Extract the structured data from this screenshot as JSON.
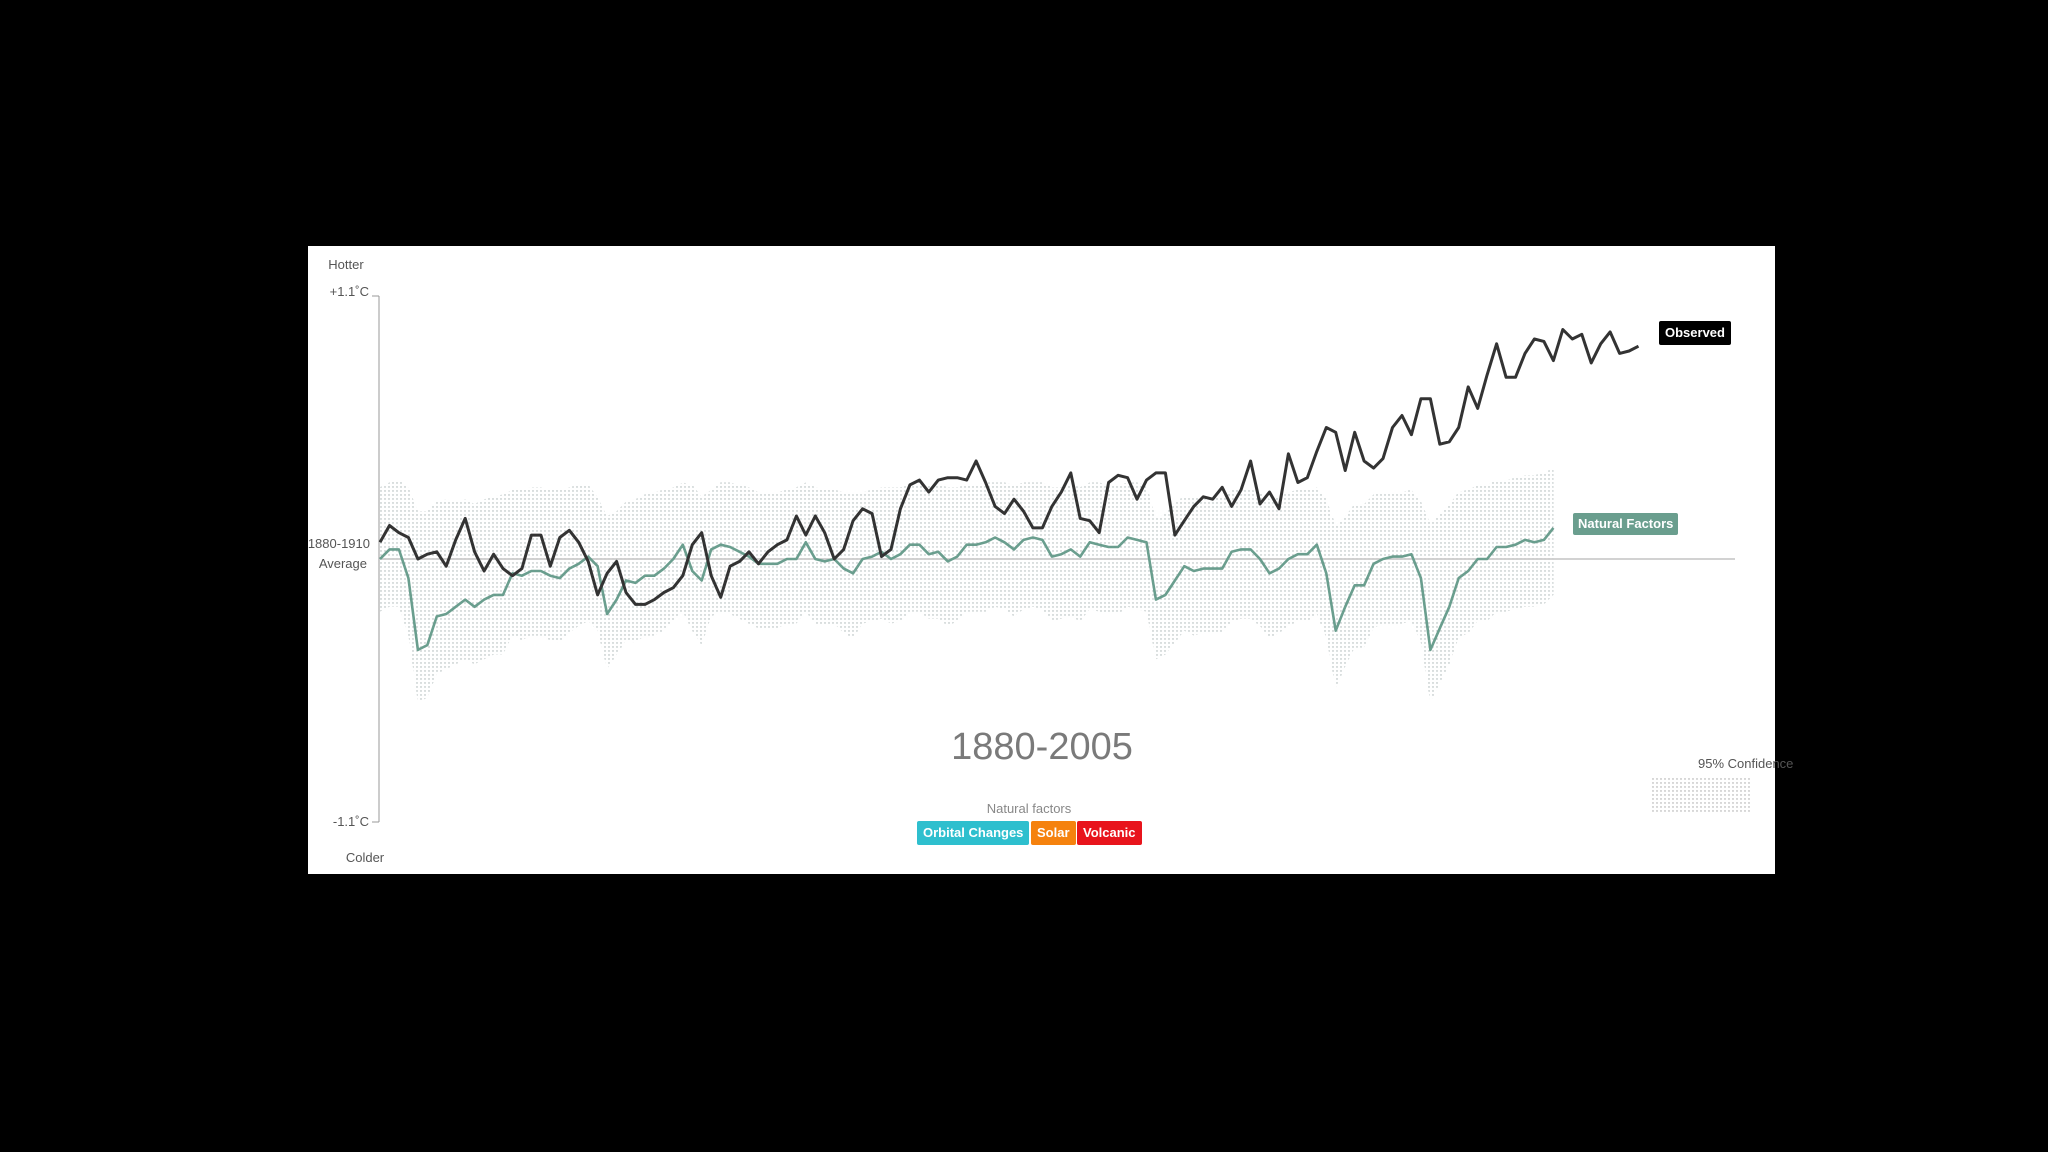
{
  "chart_data": {
    "type": "line",
    "title": "1880-2005",
    "y_top_label": "Hotter",
    "y_bottom_label": "Colder",
    "y_ticks": [
      "+1.1˚C",
      "-1.1˚C"
    ],
    "baseline_label_1": "1880-1910",
    "baseline_label_2": "Average",
    "ylim": [
      -1.1,
      1.1
    ],
    "xlim": [
      1880,
      2014
    ],
    "x_start": 1880,
    "series": [
      {
        "name": "Observed",
        "color": "#333333",
        "values": [
          0.07,
          0.14,
          0.11,
          0.09,
          0.0,
          0.02,
          0.03,
          -0.03,
          0.08,
          0.17,
          0.03,
          -0.05,
          0.02,
          -0.04,
          -0.07,
          -0.04,
          0.1,
          0.1,
          -0.03,
          0.09,
          0.12,
          0.07,
          -0.01,
          -0.15,
          -0.06,
          -0.01,
          -0.14,
          -0.19,
          -0.19,
          -0.17,
          -0.14,
          -0.12,
          -0.07,
          0.06,
          0.11,
          -0.07,
          -0.16,
          -0.03,
          -0.01,
          0.03,
          -0.02,
          0.03,
          0.06,
          0.08,
          0.18,
          0.1,
          0.18,
          0.11,
          0.0,
          0.04,
          0.16,
          0.21,
          0.19,
          0.01,
          0.04,
          0.21,
          0.31,
          0.33,
          0.28,
          0.33,
          0.34,
          0.34,
          0.33,
          0.41,
          0.32,
          0.22,
          0.19,
          0.25,
          0.2,
          0.13,
          0.13,
          0.22,
          0.28,
          0.36,
          0.17,
          0.16,
          0.11,
          0.32,
          0.35,
          0.34,
          0.25,
          0.33,
          0.36,
          0.36,
          0.1,
          0.16,
          0.22,
          0.26,
          0.25,
          0.3,
          0.22,
          0.29,
          0.41,
          0.23,
          0.28,
          0.21,
          0.44,
          0.32,
          0.34,
          0.45,
          0.55,
          0.53,
          0.37,
          0.53,
          0.41,
          0.38,
          0.42,
          0.55,
          0.6,
          0.52,
          0.67,
          0.67,
          0.48,
          0.49,
          0.55,
          0.72,
          0.63,
          0.77,
          0.9,
          0.76,
          0.76,
          0.86,
          0.92,
          0.91,
          0.83,
          0.96,
          0.92,
          0.94,
          0.82,
          0.9,
          0.95,
          0.86,
          0.87,
          0.89
        ]
      },
      {
        "name": "Natural Factors",
        "color": "#6a9e8e",
        "values": [
          0.0,
          0.04,
          0.04,
          -0.08,
          -0.38,
          -0.36,
          -0.24,
          -0.23,
          -0.2,
          -0.17,
          -0.2,
          -0.17,
          -0.15,
          -0.15,
          -0.06,
          -0.07,
          -0.05,
          -0.05,
          -0.07,
          -0.08,
          -0.04,
          -0.02,
          0.01,
          -0.03,
          -0.23,
          -0.17,
          -0.09,
          -0.1,
          -0.07,
          -0.07,
          -0.04,
          0.0,
          0.06,
          -0.05,
          -0.09,
          0.04,
          0.06,
          0.05,
          0.03,
          0.01,
          -0.02,
          -0.02,
          -0.02,
          0.0,
          0.0,
          0.07,
          0.0,
          -0.01,
          0.0,
          -0.04,
          -0.06,
          0.0,
          0.01,
          0.03,
          0.0,
          0.02,
          0.06,
          0.06,
          0.02,
          0.03,
          -0.01,
          0.01,
          0.06,
          0.06,
          0.07,
          0.09,
          0.07,
          0.04,
          0.08,
          0.09,
          0.08,
          0.01,
          0.02,
          0.04,
          0.01,
          0.07,
          0.06,
          0.05,
          0.05,
          0.09,
          0.08,
          0.07,
          -0.17,
          -0.15,
          -0.09,
          -0.03,
          -0.05,
          -0.04,
          -0.04,
          -0.04,
          0.03,
          0.04,
          0.04,
          0.0,
          -0.06,
          -0.04,
          0.0,
          0.02,
          0.02,
          0.06,
          -0.06,
          -0.3,
          -0.2,
          -0.11,
          -0.11,
          -0.02,
          0.0,
          0.01,
          0.01,
          0.02,
          -0.08,
          -0.38,
          -0.29,
          -0.2,
          -0.08,
          -0.05,
          0.0,
          0.0,
          0.05,
          0.05,
          0.06,
          0.08,
          0.07,
          0.08,
          0.13
        ]
      }
    ],
    "confidence_band": {
      "upper": [
        0.3,
        0.32,
        0.33,
        0.3,
        0.2,
        0.2,
        0.24,
        0.25,
        0.24,
        0.25,
        0.23,
        0.25,
        0.26,
        0.27,
        0.29,
        0.29,
        0.3,
        0.3,
        0.29,
        0.29,
        0.3,
        0.31,
        0.31,
        0.26,
        0.18,
        0.2,
        0.24,
        0.25,
        0.27,
        0.28,
        0.29,
        0.3,
        0.32,
        0.31,
        0.26,
        0.29,
        0.32,
        0.32,
        0.31,
        0.3,
        0.28,
        0.28,
        0.28,
        0.29,
        0.3,
        0.32,
        0.3,
        0.29,
        0.29,
        0.28,
        0.27,
        0.28,
        0.29,
        0.3,
        0.3,
        0.3,
        0.31,
        0.31,
        0.31,
        0.31,
        0.3,
        0.3,
        0.31,
        0.31,
        0.32,
        0.32,
        0.32,
        0.31,
        0.32,
        0.32,
        0.32,
        0.3,
        0.3,
        0.31,
        0.3,
        0.32,
        0.32,
        0.31,
        0.31,
        0.32,
        0.32,
        0.31,
        0.17,
        0.19,
        0.24,
        0.26,
        0.26,
        0.26,
        0.26,
        0.26,
        0.29,
        0.29,
        0.29,
        0.28,
        0.25,
        0.26,
        0.28,
        0.29,
        0.29,
        0.3,
        0.25,
        0.14,
        0.18,
        0.23,
        0.23,
        0.27,
        0.28,
        0.28,
        0.28,
        0.29,
        0.24,
        0.15,
        0.19,
        0.23,
        0.28,
        0.29,
        0.31,
        0.31,
        0.33,
        0.33,
        0.34,
        0.35,
        0.35,
        0.36,
        0.38
      ],
      "lower": [
        -0.22,
        -0.2,
        -0.2,
        -0.32,
        -0.6,
        -0.58,
        -0.48,
        -0.46,
        -0.44,
        -0.42,
        -0.44,
        -0.42,
        -0.4,
        -0.4,
        -0.32,
        -0.34,
        -0.32,
        -0.32,
        -0.34,
        -0.35,
        -0.31,
        -0.28,
        -0.26,
        -0.3,
        -0.46,
        -0.4,
        -0.34,
        -0.35,
        -0.32,
        -0.32,
        -0.3,
        -0.26,
        -0.22,
        -0.3,
        -0.36,
        -0.24,
        -0.22,
        -0.23,
        -0.25,
        -0.27,
        -0.29,
        -0.29,
        -0.29,
        -0.27,
        -0.27,
        -0.22,
        -0.27,
        -0.28,
        -0.27,
        -0.31,
        -0.33,
        -0.27,
        -0.26,
        -0.25,
        -0.27,
        -0.26,
        -0.22,
        -0.22,
        -0.25,
        -0.25,
        -0.28,
        -0.26,
        -0.22,
        -0.22,
        -0.22,
        -0.2,
        -0.21,
        -0.24,
        -0.21,
        -0.2,
        -0.21,
        -0.26,
        -0.25,
        -0.24,
        -0.26,
        -0.21,
        -0.22,
        -0.23,
        -0.23,
        -0.2,
        -0.21,
        -0.22,
        -0.42,
        -0.4,
        -0.35,
        -0.3,
        -0.32,
        -0.31,
        -0.31,
        -0.31,
        -0.26,
        -0.25,
        -0.25,
        -0.28,
        -0.33,
        -0.31,
        -0.28,
        -0.26,
        -0.26,
        -0.23,
        -0.33,
        -0.54,
        -0.45,
        -0.37,
        -0.37,
        -0.29,
        -0.27,
        -0.27,
        -0.27,
        -0.26,
        -0.35,
        -0.6,
        -0.52,
        -0.44,
        -0.33,
        -0.31,
        -0.26,
        -0.26,
        -0.22,
        -0.22,
        -0.21,
        -0.2,
        -0.2,
        -0.19,
        -0.15
      ]
    },
    "legend": {
      "confidence_label": "95% Confidence"
    },
    "natural_factors": {
      "title": "Natural factors",
      "buttons": [
        {
          "label": "Orbital Changes",
          "color": "#2ebfce"
        },
        {
          "label": "Solar",
          "color": "#f5820e"
        },
        {
          "label": "Volcanic",
          "color": "#e8141c"
        }
      ]
    }
  }
}
